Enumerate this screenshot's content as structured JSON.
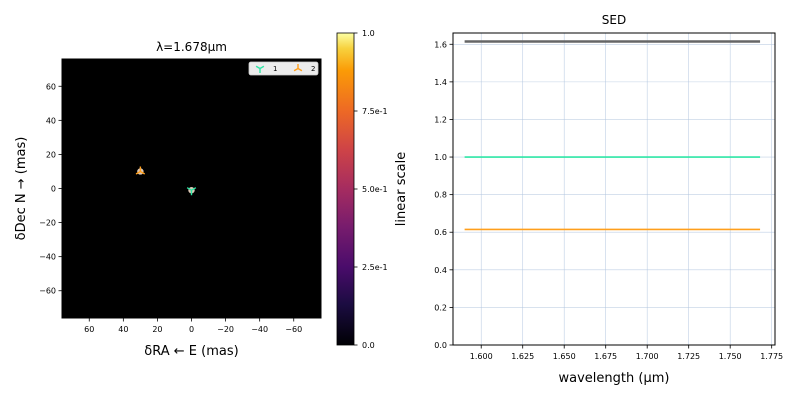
{
  "chart_data": [
    {
      "type": "scatter",
      "title": "λ=1.678μm",
      "xlabel": "δRA ← E (mas)",
      "ylabel": "δDec N → (mas)",
      "xlim": [
        76,
        -76
      ],
      "ylim": [
        -76,
        76
      ],
      "x_ticks": [
        60,
        40,
        20,
        0,
        -20,
        -40,
        -60
      ],
      "x_tick_labels": [
        "60",
        "40",
        "20",
        "0",
        "−20",
        "−40",
        "−60"
      ],
      "y_ticks": [
        60,
        40,
        20,
        0,
        -20,
        -40,
        -60
      ],
      "y_tick_labels": [
        "60",
        "40",
        "20",
        "0",
        "−20",
        "−40",
        "−60"
      ],
      "background": "#000000",
      "legend_position": "top-right",
      "legend": [
        {
          "label": "1",
          "marker": "tri-down",
          "color": "#2ee6a6"
        },
        {
          "label": "2",
          "marker": "tri-up",
          "color": "#ff9f1c"
        }
      ],
      "points": [
        {
          "label": "1",
          "x": 0,
          "y": -1,
          "marker": "tri-down",
          "color": "#2ee6a6"
        },
        {
          "label": "2",
          "x": 30,
          "y": 10,
          "marker": "tri-up",
          "color": "#ff9f1c"
        }
      ],
      "colorbar": {
        "colormap": "inferno",
        "range": [
          0,
          1
        ],
        "ticks": [
          0,
          0.25,
          0.5,
          0.75,
          1.0
        ],
        "tick_labels": [
          "0.0",
          "2.5e-1",
          "5.0e-1",
          "7.5e-1",
          "1.0"
        ]
      }
    },
    {
      "type": "line",
      "title": "SED",
      "xlabel": "wavelength (μm)",
      "ylabel": "linear scale",
      "xlim": [
        1.583,
        1.777
      ],
      "ylim": [
        0.0,
        1.66
      ],
      "grid": true,
      "x_ticks": [
        1.6,
        1.625,
        1.65,
        1.675,
        1.7,
        1.725,
        1.75,
        1.775
      ],
      "x_tick_labels": [
        "1.600",
        "1.625",
        "1.650",
        "1.675",
        "1.700",
        "1.725",
        "1.750",
        "1.775"
      ],
      "y_ticks": [
        0.0,
        0.2,
        0.4,
        0.6,
        0.8,
        1.0,
        1.2,
        1.4,
        1.6
      ],
      "y_tick_labels": [
        "0.0",
        "0.2",
        "0.4",
        "0.6",
        "0.8",
        "1.0",
        "1.2",
        "1.4",
        "1.6"
      ],
      "series": [
        {
          "x": [
            1.59,
            1.768
          ],
          "values": [
            1.615,
            1.615
          ],
          "color": "#666666",
          "width": 2.5
        },
        {
          "x": [
            1.59,
            1.768
          ],
          "values": [
            1.0,
            1.0
          ],
          "color": "#2ee6a6",
          "width": 1.6
        },
        {
          "x": [
            1.59,
            1.768
          ],
          "values": [
            0.615,
            0.615
          ],
          "color": "#ff9f1c",
          "width": 1.6
        }
      ]
    }
  ]
}
